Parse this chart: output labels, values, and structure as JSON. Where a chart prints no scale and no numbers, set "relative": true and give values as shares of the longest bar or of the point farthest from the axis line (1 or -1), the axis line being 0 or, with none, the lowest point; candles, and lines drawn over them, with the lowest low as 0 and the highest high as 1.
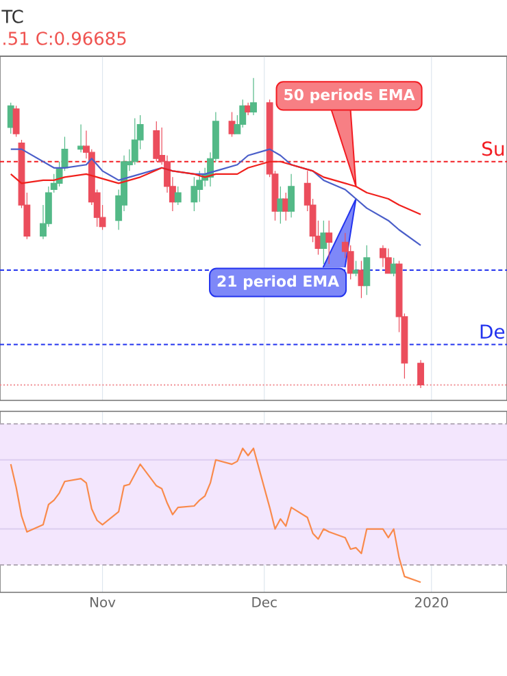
{
  "chart_data": [
    {
      "type": "candlestick",
      "title": "TC",
      "subtitle": ".51 C:0.96685",
      "relative": true,
      "x": [
        "2019-10-15",
        "2019-10-16",
        "2019-10-17",
        "2019-10-18",
        "2019-10-21",
        "2019-10-22",
        "2019-10-23",
        "2019-10-24",
        "2019-10-25",
        "2019-10-28",
        "2019-10-29",
        "2019-10-30",
        "2019-10-31",
        "2019-11-01",
        "2019-11-04",
        "2019-11-05",
        "2019-11-06",
        "2019-11-07",
        "2019-11-08",
        "2019-11-11",
        "2019-11-12",
        "2019-11-13",
        "2019-11-14",
        "2019-11-15",
        "2019-11-18",
        "2019-11-19",
        "2019-11-20",
        "2019-11-21",
        "2019-11-22",
        "2019-11-25",
        "2019-11-26",
        "2019-11-27",
        "2019-11-28",
        "2019-11-29",
        "2019-12-02",
        "2019-12-03",
        "2019-12-04",
        "2019-12-05",
        "2019-12-06",
        "2019-12-09",
        "2019-12-10",
        "2019-12-11",
        "2019-12-12",
        "2019-12-13",
        "2019-12-16",
        "2019-12-17",
        "2019-12-18",
        "2019-12-19",
        "2019-12-20",
        "2019-12-23",
        "2019-12-24",
        "2019-12-25",
        "2019-12-26",
        "2019-12-27",
        "2019-12-30"
      ],
      "ohlc": [
        [
          0.84,
          0.92,
          0.82,
          0.91
        ],
        [
          0.9,
          0.91,
          0.81,
          0.82
        ],
        [
          0.79,
          0.8,
          0.58,
          0.59
        ],
        [
          0.59,
          0.63,
          0.48,
          0.49
        ],
        [
          0.49,
          0.59,
          0.48,
          0.53
        ],
        [
          0.53,
          0.65,
          0.52,
          0.63
        ],
        [
          0.64,
          0.69,
          0.63,
          0.66
        ],
        [
          0.66,
          0.73,
          0.65,
          0.71
        ],
        [
          0.71,
          0.81,
          0.7,
          0.77
        ],
        [
          0.77,
          0.85,
          0.76,
          0.78
        ],
        [
          0.78,
          0.83,
          0.74,
          0.76
        ],
        [
          0.76,
          0.77,
          0.59,
          0.6
        ],
        [
          0.63,
          0.64,
          0.52,
          0.55
        ],
        [
          0.55,
          0.59,
          0.51,
          0.52
        ],
        [
          0.54,
          0.64,
          0.51,
          0.62
        ],
        [
          0.59,
          0.75,
          0.57,
          0.73
        ],
        [
          0.72,
          0.77,
          0.7,
          0.73
        ],
        [
          0.73,
          0.87,
          0.72,
          0.8
        ],
        [
          0.8,
          0.88,
          0.77,
          0.85
        ],
        [
          0.83,
          0.86,
          0.73,
          0.74
        ],
        [
          0.75,
          0.84,
          0.72,
          0.73
        ],
        [
          0.73,
          0.75,
          0.63,
          0.65
        ],
        [
          0.65,
          0.68,
          0.57,
          0.6
        ],
        [
          0.6,
          0.65,
          0.59,
          0.63
        ],
        [
          0.6,
          0.68,
          0.57,
          0.65
        ],
        [
          0.64,
          0.7,
          0.6,
          0.67
        ],
        [
          0.67,
          0.71,
          0.65,
          0.69
        ],
        [
          0.68,
          0.76,
          0.65,
          0.74
        ],
        [
          0.74,
          0.89,
          0.73,
          0.86
        ],
        [
          0.86,
          0.89,
          0.81,
          0.82
        ],
        [
          0.82,
          0.88,
          0.82,
          0.85
        ],
        [
          0.85,
          0.93,
          0.84,
          0.91
        ],
        [
          0.91,
          0.92,
          0.88,
          0.89
        ],
        [
          0.89,
          1,
          0.88,
          0.92
        ],
        [
          0.92,
          0.93,
          0.68,
          0.69
        ],
        [
          0.69,
          0.7,
          0.54,
          0.57
        ],
        [
          0.57,
          0.65,
          0.53,
          0.61
        ],
        [
          0.61,
          0.63,
          0.54,
          0.57
        ],
        [
          0.57,
          0.69,
          0.55,
          0.65
        ],
        [
          0.66,
          0.7,
          0.57,
          0.59
        ],
        [
          0.59,
          0.61,
          0.47,
          0.49
        ],
        [
          0.49,
          0.54,
          0.43,
          0.45
        ],
        [
          0.45,
          0.54,
          0.4,
          0.5
        ],
        [
          0.5,
          0.54,
          0.4,
          0.47
        ],
        [
          0.47,
          0.5,
          0.42,
          0.44
        ],
        [
          0.44,
          0.46,
          0.35,
          0.37
        ],
        [
          0.37,
          0.41,
          0.36,
          0.38
        ],
        [
          0.38,
          0.41,
          0.29,
          0.33
        ],
        [
          0.33,
          0.46,
          0.3,
          0.42
        ],
        [
          0.45,
          0.46,
          0.39,
          0.42
        ],
        [
          0.42,
          0.45,
          0.37,
          0.37
        ],
        [
          0.37,
          0.42,
          0.36,
          0.4
        ],
        [
          0.4,
          0.41,
          0.18,
          0.23
        ],
        [
          0.23,
          0.24,
          0.03,
          0.08
        ],
        [
          0.08,
          0.09,
          0,
          0.01
        ]
      ],
      "colors": [
        "#53b987",
        "#eb4d5c",
        "#eb4d5c",
        "#eb4d5c",
        "#53b987",
        "#53b987",
        "#53b987",
        "#53b987",
        "#53b987",
        "#53b987",
        "#eb4d5c",
        "#eb4d5c",
        "#eb4d5c",
        "#eb4d5c",
        "#53b987",
        "#53b987",
        "#53b987",
        "#53b987",
        "#53b987",
        "#eb4d5c",
        "#eb4d5c",
        "#eb4d5c",
        "#eb4d5c",
        "#53b987",
        "#53b987",
        "#53b987",
        "#53b987",
        "#53b987",
        "#53b987",
        "#eb4d5c",
        "#53b987",
        "#53b987",
        "#eb4d5c",
        "#53b987",
        "#eb4d5c",
        "#eb4d5c",
        "#53b987",
        "#eb4d5c",
        "#53b987",
        "#eb4d5c",
        "#eb4d5c",
        "#eb4d5c",
        "#53b987",
        "#eb4d5c",
        "#eb4d5c",
        "#eb4d5c",
        "#53b987",
        "#eb4d5c",
        "#53b987",
        "#eb4d5c",
        "#eb4d5c",
        "#53b987",
        "#eb4d5c",
        "#eb4d5c",
        "#eb4d5c"
      ],
      "series": [
        {
          "type": "line",
          "color": "#4a5ec9",
          "x": [
            "2019-10-15",
            "2019-10-17",
            "2019-10-21",
            "2019-10-23",
            "2019-10-25",
            "2019-10-29",
            "2019-10-30",
            "2019-11-01",
            "2019-11-04",
            "2019-11-06",
            "2019-11-08",
            "2019-11-12",
            "2019-11-14",
            "2019-11-18",
            "2019-11-20",
            "2019-11-22",
            "2019-11-26",
            "2019-11-28",
            "2019-12-02",
            "2019-12-04",
            "2019-12-06",
            "2019-12-10",
            "2019-12-12",
            "2019-12-16",
            "2019-12-18",
            "2019-12-20",
            "2019-12-24",
            "2019-12-26",
            "2019-12-30"
          ],
          "values": [
            0.77,
            0.77,
            0.73,
            0.71,
            0.71,
            0.72,
            0.74,
            0.7,
            0.67,
            0.68,
            0.69,
            0.71,
            0.7,
            0.69,
            0.69,
            0.7,
            0.72,
            0.75,
            0.77,
            0.75,
            0.72,
            0.7,
            0.67,
            0.64,
            0.61,
            0.58,
            0.54,
            0.51,
            0.46
          ]
        },
        {
          "type": "line",
          "color": "#f0201c",
          "x": [
            "2019-10-15",
            "2019-10-17",
            "2019-10-21",
            "2019-10-23",
            "2019-10-25",
            "2019-10-29",
            "2019-10-31",
            "2019-11-04",
            "2019-11-06",
            "2019-11-08",
            "2019-11-12",
            "2019-11-14",
            "2019-11-18",
            "2019-11-20",
            "2019-11-22",
            "2019-11-26",
            "2019-11-28",
            "2019-12-02",
            "2019-12-04",
            "2019-12-06",
            "2019-12-10",
            "2019-12-12",
            "2019-12-16",
            "2019-12-18",
            "2019-12-20",
            "2019-12-24",
            "2019-12-26",
            "2019-12-30"
          ],
          "values": [
            0.69,
            0.66,
            0.67,
            0.67,
            0.68,
            0.69,
            0.68,
            0.66,
            0.67,
            0.68,
            0.71,
            0.7,
            0.69,
            0.68,
            0.69,
            0.69,
            0.71,
            0.73,
            0.73,
            0.72,
            0.7,
            0.68,
            0.66,
            0.65,
            0.63,
            0.61,
            0.59,
            0.56
          ]
        }
      ],
      "xlim": [
        "2019-10-13",
        "2020-01-15"
      ],
      "xticks": [
        {
          "value": "2019-11-01",
          "label": null
        },
        {
          "value": "2019-12-01",
          "label": null
        },
        {
          "value": "2020-01-01",
          "label": null
        }
      ],
      "tick_labels": false,
      "grid": "x",
      "ref_lines": [
        {
          "axis": "y",
          "value": 0.73,
          "label": "Su",
          "color": "#f21c22",
          "line_style": "dashed"
        },
        {
          "axis": "y",
          "value": 0.38,
          "color": "#2233ee",
          "line_style": "dashed"
        },
        {
          "axis": "y",
          "value": 0.14,
          "label": "De",
          "color": "#2233ee",
          "line_style": "dashed"
        },
        {
          "axis": "y",
          "value": 0.01,
          "color": "#f08a8f",
          "line_style": "dotted"
        }
      ],
      "annotations": [
        {
          "text": "50 periods EMA",
          "x": "2019-12-18",
          "y": 0.65
        },
        {
          "text": "21 period EMA",
          "x": "2019-12-18",
          "y": 0.61
        }
      ]
    },
    {
      "type": "line",
      "relative": true,
      "color": "#f98a4b",
      "x": [
        "2019-10-15",
        "2019-10-16",
        "2019-10-17",
        "2019-10-18",
        "2019-10-21",
        "2019-10-22",
        "2019-10-23",
        "2019-10-24",
        "2019-10-25",
        "2019-10-28",
        "2019-10-29",
        "2019-10-30",
        "2019-10-31",
        "2019-11-01",
        "2019-11-04",
        "2019-11-05",
        "2019-11-06",
        "2019-11-07",
        "2019-11-08",
        "2019-11-11",
        "2019-11-12",
        "2019-11-13",
        "2019-11-14",
        "2019-11-15",
        "2019-11-18",
        "2019-11-19",
        "2019-11-20",
        "2019-11-21",
        "2019-11-22",
        "2019-11-25",
        "2019-11-26",
        "2019-11-27",
        "2019-11-28",
        "2019-11-29",
        "2019-12-02",
        "2019-12-03",
        "2019-12-04",
        "2019-12-05",
        "2019-12-06",
        "2019-12-09",
        "2019-12-10",
        "2019-12-11",
        "2019-12-12",
        "2019-12-13",
        "2019-12-16",
        "2019-12-17",
        "2019-12-18",
        "2019-12-19",
        "2019-12-20",
        "2019-12-23",
        "2019-12-24",
        "2019-12-25",
        "2019-12-26",
        "2019-12-27",
        "2019-12-30"
      ],
      "values": [
        0.89,
        0.73,
        0.53,
        0.42,
        0.47,
        0.61,
        0.64,
        0.69,
        0.77,
        0.79,
        0.76,
        0.58,
        0.5,
        0.47,
        0.56,
        0.74,
        0.75,
        0.82,
        0.89,
        0.74,
        0.72,
        0.62,
        0.54,
        0.59,
        0.6,
        0.64,
        0.67,
        0.76,
        0.92,
        0.89,
        0.91,
        1,
        0.95,
        1,
        0.59,
        0.44,
        0.51,
        0.46,
        0.59,
        0.52,
        0.41,
        0.37,
        0.44,
        0.42,
        0.38,
        0.3,
        0.31,
        0.27,
        0.44,
        0.44,
        0.38,
        0.44,
        0.24,
        0.11,
        0.07
      ],
      "xlim": [
        "2019-10-13",
        "2020-01-15"
      ],
      "xticks": [
        {
          "value": "2019-11-01",
          "label": "Nov"
        },
        {
          "value": "2019-12-01",
          "label": "Dec"
        },
        {
          "value": "2020-01-01",
          "label": "2020"
        }
      ],
      "tick_labels": "x",
      "grid": "x",
      "bands": [
        {
          "axis": "y",
          "from": 0.19,
          "to": 1.17,
          "color": "#f3e6fd"
        }
      ],
      "ref_lines": [
        {
          "axis": "y",
          "value": 1.17,
          "color": "#b2a9b6",
          "line_style": "dashed"
        },
        {
          "axis": "y",
          "value": 0.19,
          "color": "#b2a9b6",
          "line_style": "dashed"
        },
        {
          "axis": "y",
          "value": 0.92,
          "color": "#dccdf0",
          "line_style": "solid"
        },
        {
          "axis": "y",
          "value": 0.44,
          "color": "#dccdf0",
          "line_style": "solid"
        }
      ]
    }
  ]
}
